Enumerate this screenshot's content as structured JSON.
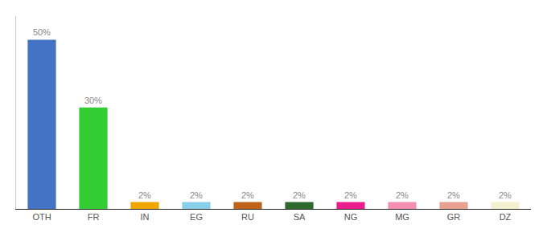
{
  "chart_data": {
    "type": "bar",
    "categories": [
      "OTH",
      "FR",
      "IN",
      "EG",
      "RU",
      "SA",
      "NG",
      "MG",
      "GR",
      "DZ"
    ],
    "values": [
      50,
      30,
      2,
      2,
      2,
      2,
      2,
      2,
      2,
      2
    ],
    "value_labels": [
      "50%",
      "30%",
      "2%",
      "2%",
      "2%",
      "2%",
      "2%",
      "2%",
      "2%",
      "2%"
    ],
    "data_labels": true,
    "colors": [
      "#4472c4",
      "#33cc33",
      "#f0a500",
      "#87ceeb",
      "#c0631a",
      "#2d6a2d",
      "#e91e8c",
      "#f48fb1",
      "#e8a090",
      "#f5f0d0"
    ],
    "ylim": [
      0,
      57
    ],
    "grid": false,
    "tick_labels": "x"
  }
}
